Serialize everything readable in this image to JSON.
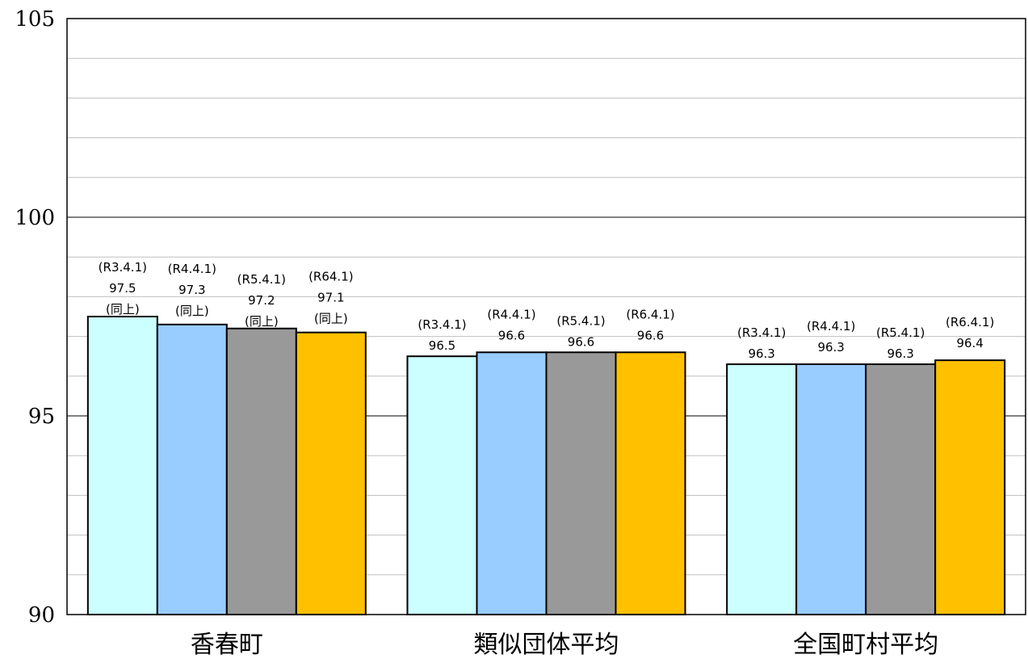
{
  "chart_data": {
    "type": "bar",
    "title": "",
    "xlabel": "",
    "ylabel": "",
    "ylim": [
      90,
      105
    ],
    "y_major_ticks": [
      90,
      95,
      100,
      105
    ],
    "y_minor_step": 1,
    "grid": true,
    "categories": [
      "香春町",
      "類似団体平均",
      "全国町村平均"
    ],
    "series": [
      {
        "color": "#ccffff",
        "values": [
          97.5,
          96.5,
          96.3
        ]
      },
      {
        "color": "#99ccff",
        "values": [
          97.3,
          96.6,
          96.3
        ]
      },
      {
        "color": "#999999",
        "values": [
          97.2,
          96.6,
          96.3
        ]
      },
      {
        "color": "#ffc000",
        "values": [
          97.1,
          96.6,
          96.4
        ]
      }
    ],
    "data_labels": [
      [
        [
          "(R3.4.1)",
          "97.5",
          "(同上)"
        ],
        [
          "(R4.4.1)",
          "97.3",
          "(同上)"
        ],
        [
          "(R5.4.1)",
          "97.2",
          "(同上)"
        ],
        [
          "(R64.1)",
          "97.1",
          "(同上)"
        ]
      ],
      [
        [
          "(R3.4.1)",
          "96.5"
        ],
        [
          "(R4.4.1)",
          "96.6"
        ],
        [
          "(R5.4.1)",
          "96.6"
        ],
        [
          "(R6.4.1)",
          "96.6"
        ]
      ],
      [
        [
          "(R3.4.1)",
          "96.3"
        ],
        [
          "(R4.4.1)",
          "96.3"
        ],
        [
          "(R5.4.1)",
          "96.3"
        ],
        [
          "(R6.4.1)",
          "96.4"
        ]
      ]
    ]
  }
}
